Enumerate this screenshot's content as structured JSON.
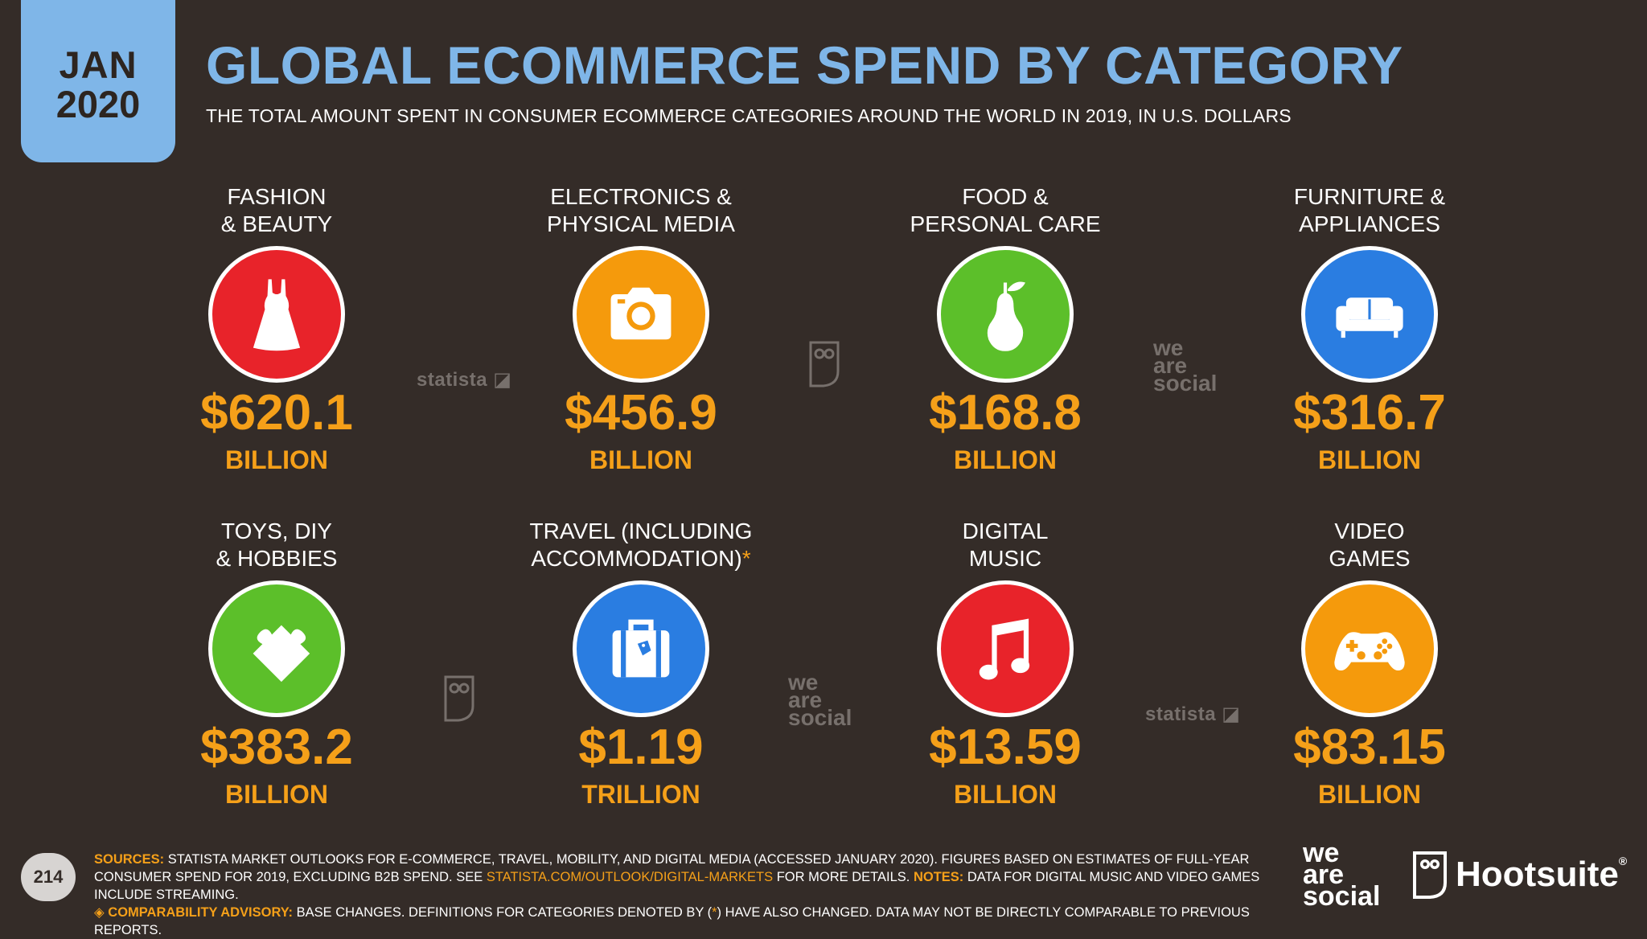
{
  "header": {
    "date_month": "JAN",
    "date_year": "2020",
    "title": "GLOBAL ECOMMERCE SPEND BY CATEGORY",
    "subtitle": "THE TOTAL AMOUNT SPENT IN CONSUMER ECOMMERCE CATEGORIES AROUND THE WORLD IN 2019, IN U.S. DOLLARS"
  },
  "categories": [
    {
      "label_1": "FASHION",
      "label_2": "& BEAUTY",
      "icon": "dress-icon",
      "color": "#e8232a",
      "value": "$620.1",
      "unit": "BILLION"
    },
    {
      "label_1": "ELECTRONICS &",
      "label_2": "PHYSICAL MEDIA",
      "icon": "camera-icon",
      "color": "#f59a0c",
      "value": "$456.9",
      "unit": "BILLION"
    },
    {
      "label_1": "FOOD &",
      "label_2": "PERSONAL CARE",
      "icon": "pear-icon",
      "color": "#5cbf2a",
      "value": "$168.8",
      "unit": "BILLION"
    },
    {
      "label_1": "FURNITURE &",
      "label_2": "APPLIANCES",
      "icon": "sofa-icon",
      "color": "#2a7de1",
      "value": "$316.7",
      "unit": "BILLION"
    },
    {
      "label_1": "TOYS, DIY",
      "label_2": "& HOBBIES",
      "icon": "puzzle-icon",
      "color": "#5cbf2a",
      "value": "$383.2",
      "unit": "BILLION"
    },
    {
      "label_1": "TRAVEL (INCLUDING",
      "label_2": "ACCOMMODATION)",
      "label_star": "*",
      "icon": "suitcase-icon",
      "color": "#2a7de1",
      "value": "$1.19",
      "unit": "TRILLION"
    },
    {
      "label_1": "DIGITAL",
      "label_2": "MUSIC",
      "icon": "music-note-icon",
      "color": "#e8232a",
      "value": "$13.59",
      "unit": "BILLION"
    },
    {
      "label_1": "VIDEO",
      "label_2": "GAMES",
      "icon": "gamepad-icon",
      "color": "#f59a0c",
      "value": "$83.15",
      "unit": "BILLION"
    }
  ],
  "watermarks": {
    "statista": "statista",
    "was_1": "we",
    "was_2": "are",
    "was_3": "social"
  },
  "footer": {
    "page_number": "214",
    "sources_label": "SOURCES:",
    "sources_text": "STATISTA MARKET OUTLOOKS FOR E-COMMERCE, TRAVEL, MOBILITY, AND DIGITAL MEDIA (ACCESSED JANUARY 2020). FIGURES BASED ON ESTIMATES OF FULL-YEAR CONSUMER SPEND FOR 2019, EXCLUDING B2B SPEND. SEE",
    "sources_link": "STATISTA.COM/OUTLOOK/DIGITAL-MARKETS",
    "sources_text_2": "FOR MORE DETAILS.",
    "notes_label": "NOTES:",
    "notes_text": "DATA FOR DIGITAL MUSIC AND VIDEO GAMES INCLUDE STREAMING.",
    "advisory_label": "◈ COMPARABILITY ADVISORY:",
    "advisory_text": "BASE CHANGES. DEFINITIONS FOR CATEGORIES DENOTED BY (",
    "advisory_star": "*",
    "advisory_text_2": ") HAVE ALSO CHANGED. DATA MAY NOT BE DIRECTLY COMPARABLE TO PREVIOUS REPORTS."
  },
  "brands": {
    "was_1": "we",
    "was_2": "are",
    "was_3": "social",
    "hootsuite": "Hootsuite",
    "registered": "®"
  }
}
